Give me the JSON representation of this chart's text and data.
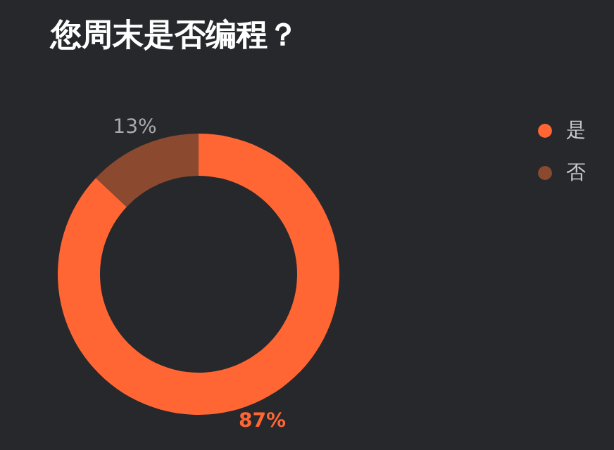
{
  "chart_data": {
    "type": "donut",
    "title": "您周末是否编程？",
    "categories": [
      "是",
      "否"
    ],
    "values": [
      87,
      13
    ],
    "value_labels": [
      "87%",
      "13%"
    ],
    "colors": [
      "#ff6633",
      "#8b4a30"
    ],
    "legend": "top right"
  }
}
